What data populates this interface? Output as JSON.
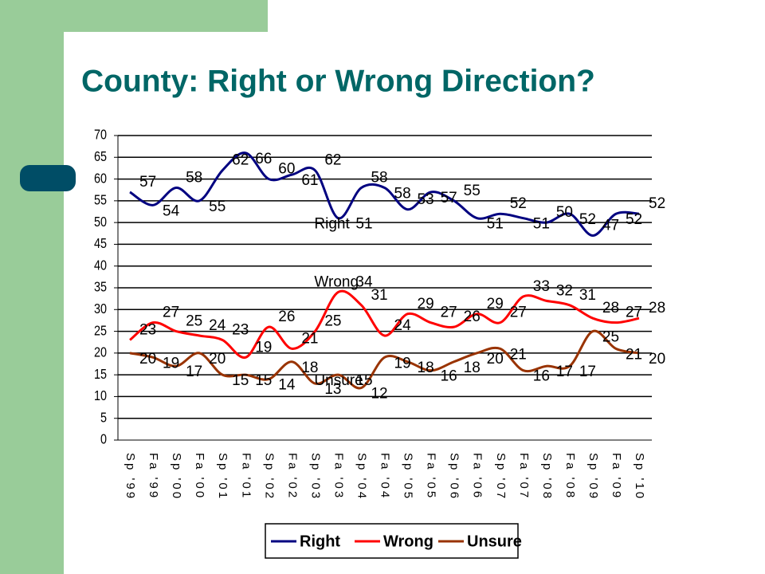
{
  "chart_data": {
    "type": "line",
    "title": "County: Right or Wrong Direction?",
    "categories": [
      "Sp '99",
      "Fa '99",
      "Sp '00",
      "Fa '00",
      "Sp '01",
      "Fa '01",
      "Sp '02",
      "Fa '02",
      "Sp '03",
      "Fa '03",
      "Sp '04",
      "Fa '04",
      "Sp '05",
      "Fa '05",
      "Sp '06",
      "Fa '06",
      "Sp '07",
      "Fa '07",
      "Sp '08",
      "Fa '08",
      "Sp '09",
      "Fa '09",
      "Sp '10"
    ],
    "series": [
      {
        "name": "Right",
        "color": "#000080",
        "values": [
          57,
          54,
          58,
          55,
          62,
          66,
          60,
          61,
          62,
          51,
          58,
          58,
          53,
          57,
          55,
          51,
          52,
          51,
          50,
          52,
          47,
          52,
          52
        ]
      },
      {
        "name": "Wrong",
        "color": "#ff0000",
        "values": [
          23,
          27,
          25,
          24,
          23,
          19,
          26,
          21,
          25,
          34,
          31,
          24,
          29,
          27,
          26,
          29,
          27,
          33,
          32,
          31,
          28,
          27,
          28
        ]
      },
      {
        "name": "Unsure",
        "color": "#993300",
        "values": [
          20,
          19,
          17,
          20,
          15,
          15,
          14,
          18,
          13,
          15,
          12,
          19,
          18,
          16,
          18,
          20,
          21,
          16,
          17,
          17,
          25,
          21,
          20
        ]
      }
    ],
    "ylim": [
      0,
      70
    ],
    "yticks": [
      0,
      5,
      10,
      15,
      20,
      25,
      30,
      35,
      40,
      45,
      50,
      55,
      60,
      65,
      70
    ],
    "grid": true,
    "legend": "bottom"
  }
}
